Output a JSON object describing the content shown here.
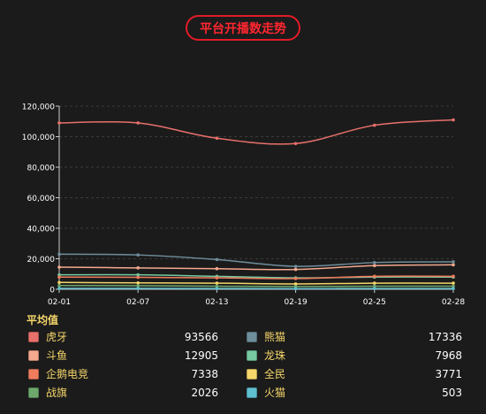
{
  "header": {
    "title": "平台开播数走势"
  },
  "average_title": "平均值",
  "legend_averages": [
    {
      "name": "虎牙",
      "value": "93566",
      "color": "#e8706b"
    },
    {
      "name": "熊猫",
      "value": "17336",
      "color": "#6f8e9c"
    },
    {
      "name": "斗鱼",
      "value": "12905",
      "color": "#f4a98e"
    },
    {
      "name": "龙珠",
      "value": "7968",
      "color": "#76c9a1"
    },
    {
      "name": "企鹅电竞",
      "value": "7338",
      "color": "#ef7d5d"
    },
    {
      "name": "全民",
      "value": "3771",
      "color": "#f5d66a"
    },
    {
      "name": "战旗",
      "value": "2026",
      "color": "#6fa86d"
    },
    {
      "name": "火猫",
      "value": "503",
      "color": "#5fc0d0"
    }
  ],
  "chart_data": {
    "type": "line",
    "x": [
      "02-01",
      "02-07",
      "02-13",
      "02-19",
      "02-25",
      "02-28"
    ],
    "xlabel": "",
    "ylabel": "",
    "ylim": [
      0,
      120000
    ],
    "yticks": [
      "0",
      "20,000",
      "40,000",
      "60,000",
      "80,000",
      "100,000",
      "120,000"
    ],
    "grid": true,
    "series": [
      {
        "name": "虎牙",
        "color": "#e8706b",
        "values": [
          109000,
          109000,
          99000,
          95500,
          107500,
          111000
        ]
      },
      {
        "name": "熊猫",
        "color": "#6f8e9c",
        "values": [
          23000,
          22500,
          19500,
          15000,
          17500,
          18000
        ]
      },
      {
        "name": "斗鱼",
        "color": "#f4a98e",
        "values": [
          14500,
          14000,
          13500,
          13000,
          15500,
          16000
        ]
      },
      {
        "name": "龙珠",
        "color": "#76c9a1",
        "values": [
          9500,
          9500,
          8500,
          7500,
          8000,
          8000
        ]
      },
      {
        "name": "企鹅电竞",
        "color": "#ef7d5d",
        "values": [
          8000,
          7800,
          7500,
          7000,
          8500,
          8500
        ]
      },
      {
        "name": "全民",
        "color": "#f5d66a",
        "values": [
          4500,
          4200,
          4000,
          3500,
          4000,
          4000
        ]
      },
      {
        "name": "战旗",
        "color": "#6fa86d",
        "values": [
          2500,
          2300,
          2000,
          1800,
          2000,
          2000
        ]
      },
      {
        "name": "火猫",
        "color": "#5fc0d0",
        "values": [
          600,
          550,
          500,
          450,
          500,
          500
        ]
      }
    ]
  }
}
